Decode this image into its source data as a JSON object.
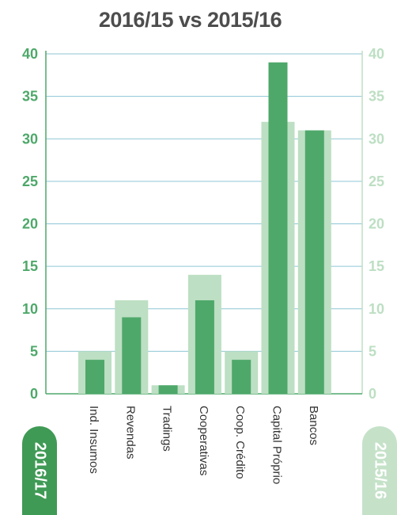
{
  "title": "2016/15 vs 2015/16",
  "legend": {
    "current": "2016/17",
    "previous": "2015/16"
  },
  "colors": {
    "current": "#4ea86a",
    "previous": "#bddfc3",
    "axis": "#4ea86a",
    "axis_right": "#bddfc3",
    "grid": "#8fc6d6"
  },
  "chart_data": {
    "type": "bar",
    "title": "2016/15 vs 2015/16",
    "categories": [
      "Ind. Insumos",
      "Revendas",
      "Tradings",
      "Cooperativas",
      "Coop. Crédito",
      "Capital Próprio",
      "Bancos"
    ],
    "series": [
      {
        "name": "2016/17",
        "values": [
          4,
          9,
          1,
          11,
          4,
          39,
          31
        ]
      },
      {
        "name": "2015/16",
        "values": [
          5,
          11,
          1,
          14,
          5,
          32,
          31
        ]
      }
    ],
    "ylim": [
      0,
      40
    ],
    "yticks": [
      0,
      5,
      10,
      15,
      20,
      25,
      30,
      35,
      40
    ],
    "yticks_right": [
      0,
      5,
      10,
      15,
      20,
      25,
      30,
      35,
      40
    ],
    "grid": true
  }
}
